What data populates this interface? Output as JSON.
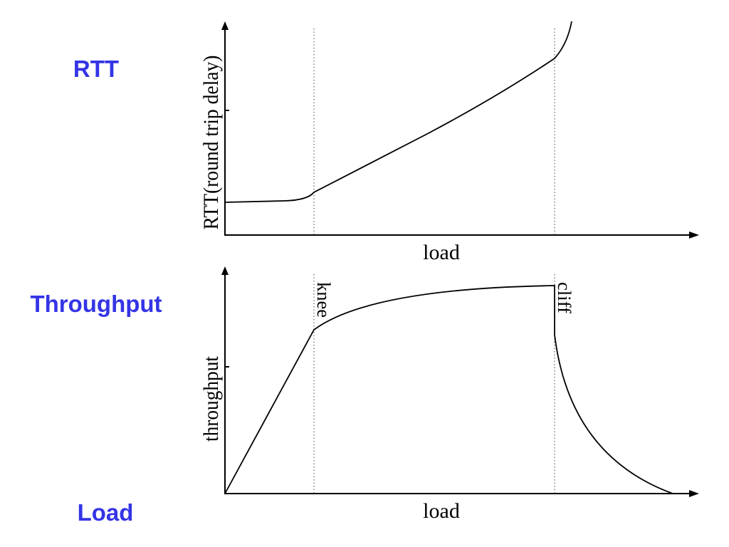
{
  "side_labels": {
    "rtt": "RTT",
    "throughput": "Throughput",
    "load": "Load"
  },
  "top_plot": {
    "y_axis_label": "RTT(round trip delay)",
    "x_axis_label": "load"
  },
  "bottom_plot": {
    "y_axis_label": "throughput",
    "x_axis_label": "load",
    "annotations": [
      "knee",
      "cliff"
    ]
  }
}
